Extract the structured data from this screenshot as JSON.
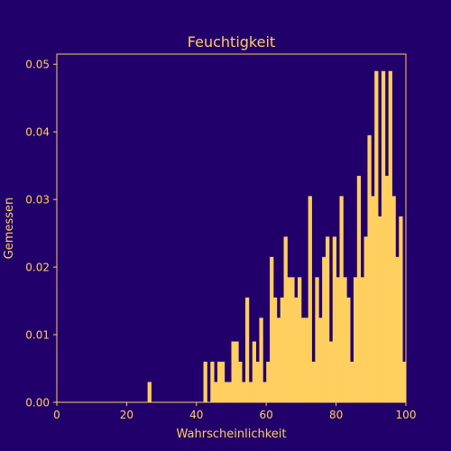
{
  "chart_data": {
    "type": "bar",
    "title": "Feuchtigkeit",
    "xlabel": "Wahrscheinlichkeit",
    "ylabel": "Gemessen",
    "xlim": [
      0,
      100
    ],
    "ylim": [
      0,
      0.0515
    ],
    "xticks": [
      0,
      20,
      40,
      60,
      80,
      100
    ],
    "xtick_labels": [
      "0",
      "20",
      "40",
      "60",
      "80",
      "100"
    ],
    "yticks": [
      0,
      0.01,
      0.02,
      0.03,
      0.04,
      0.05
    ],
    "ytick_labels": [
      "0.00",
      "0.01",
      "0.02",
      "0.03",
      "0.04",
      "0.05"
    ],
    "grid": false,
    "bin_width": 1,
    "bin_start": 0,
    "values": [
      0,
      0,
      0,
      0,
      0,
      0,
      0,
      0,
      0,
      0,
      0,
      0,
      0,
      0,
      0,
      0,
      0,
      0,
      0,
      0,
      0,
      0,
      0,
      0,
      0,
      0,
      0.003,
      0,
      0,
      0,
      0,
      0,
      0,
      0,
      0,
      0,
      0,
      0,
      0,
      0,
      0,
      0,
      0.006,
      0,
      0.006,
      0.003,
      0.006,
      0.006,
      0.003,
      0.003,
      0.009,
      0.009,
      0.006,
      0.003,
      0.0155,
      0.003,
      0.009,
      0.006,
      0.0125,
      0.003,
      0.006,
      0.0215,
      0.0155,
      0.0125,
      0.0155,
      0.0245,
      0.0185,
      0.0185,
      0.0155,
      0.0185,
      0.0125,
      0.0125,
      0.0305,
      0.006,
      0.0185,
      0.0125,
      0.0215,
      0.0245,
      0.009,
      0.0245,
      0.0185,
      0.0305,
      0.0185,
      0.0155,
      0.006,
      0.0185,
      0.0335,
      0.0185,
      0.0245,
      0.0395,
      0.0305,
      0.049,
      0.0275,
      0.049,
      0.0335,
      0.049,
      0.0305,
      0.0215,
      0.0275,
      0.006
    ],
    "colors": {
      "background": "#22006b",
      "bars": "#ffcf5f",
      "axes": "#ffcf5f",
      "text": "#ffcf5f"
    }
  }
}
